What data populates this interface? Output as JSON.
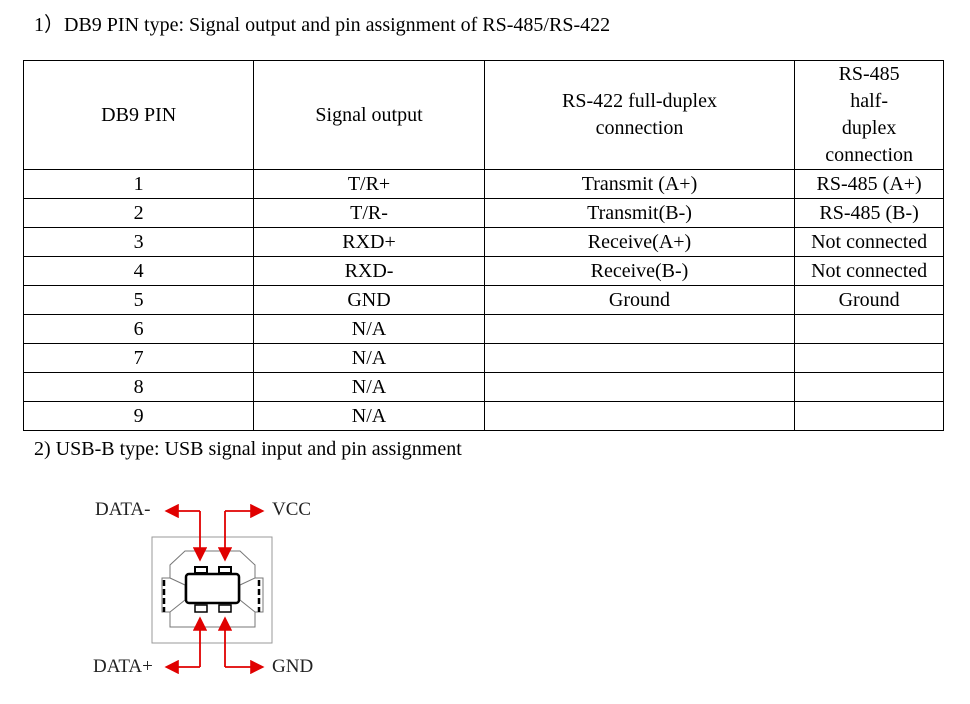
{
  "section1": {
    "heading": "1）DB9 PIN type: Signal output and pin assignment of RS-485/RS-422",
    "columns": [
      "DB9 PIN",
      "Signal output",
      "RS-422 full-duplex connection",
      "RS-485 half-duplex connection"
    ],
    "rows": [
      [
        "1",
        "T/R+",
        "Transmit (A+)",
        "RS-485 (A+)"
      ],
      [
        "2",
        "T/R-",
        "Transmit(B-)",
        "RS-485 (B-)"
      ],
      [
        "3",
        "RXD+",
        "Receive(A+)",
        "Not connected"
      ],
      [
        "4",
        "RXD-",
        "Receive(B-)",
        "Not connected"
      ],
      [
        "5",
        "GND",
        "Ground",
        "Ground"
      ],
      [
        "6",
        "N/A",
        "",
        ""
      ],
      [
        "7",
        "N/A",
        "",
        ""
      ],
      [
        "8",
        "N/A",
        "",
        ""
      ],
      [
        "9",
        "N/A",
        "",
        ""
      ]
    ]
  },
  "section2": {
    "heading": "2) USB-B type: USB signal input and pin assignment",
    "diagram": {
      "labels": {
        "data_minus": "DATA-",
        "vcc": "VCC",
        "data_plus": "DATA+",
        "gnd": "GND"
      },
      "arrow_color": "#e00000"
    }
  }
}
